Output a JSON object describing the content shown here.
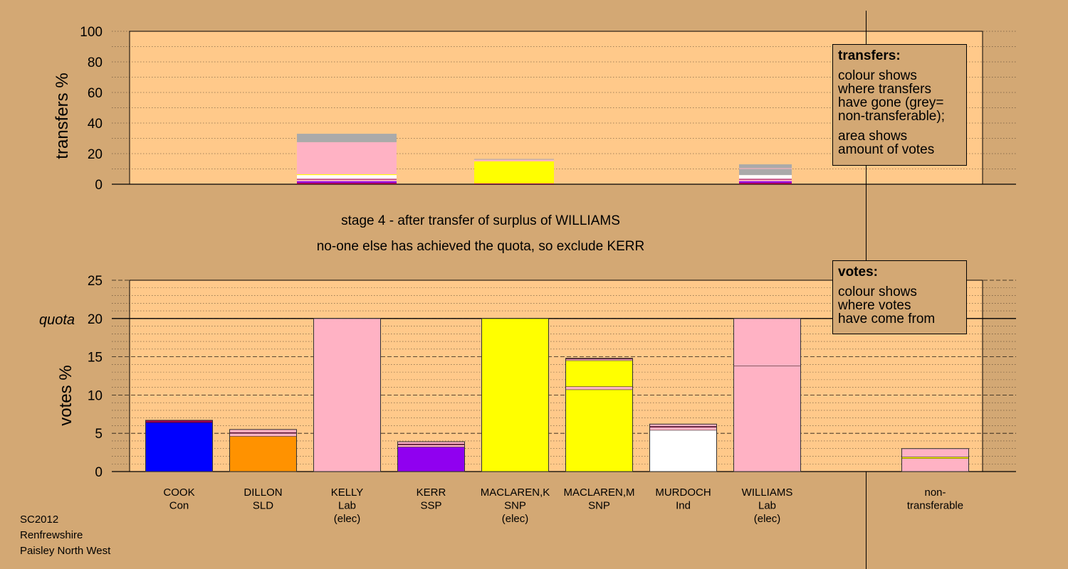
{
  "colors": {
    "background": "#d3a874",
    "plot_background": "#ffc98a",
    "Con": "#0000ff",
    "SLD": "#ff9200",
    "Lab": "#ffb2c4",
    "SSP": "#9000f0",
    "SNP": "#ffff00",
    "Ind": "#ffffff",
    "non_transferable": "#aaaaaa",
    "dark": "#a00050"
  },
  "captions": {
    "stage": "stage 4 - after transfer of surplus of WILLIAMS",
    "action": "no-one else has achieved the quota, so exclude KERR"
  },
  "legend_transfers": {
    "title": "transfers:",
    "lines1": [
      "colour shows",
      "where transfers",
      "have gone (grey=",
      "non-transferable);"
    ],
    "lines2": [
      "area shows",
      "amount of votes"
    ]
  },
  "legend_votes": {
    "title": "votes:",
    "lines": [
      "colour shows",
      "where votes",
      "have come from"
    ]
  },
  "footer": [
    "SC2012",
    "Renfrewshire",
    "Paisley North West"
  ],
  "chart_data": [
    {
      "type": "bar",
      "stacked": true,
      "ylabel": "transfers %",
      "ylim": [
        0,
        100
      ],
      "yticks": [
        0,
        20,
        40,
        60,
        80,
        100
      ],
      "grid": "dotted",
      "categories": [
        "COOK",
        "DILLON",
        "KELLY",
        "KERR",
        "MACLAREN,K",
        "MACLAREN,M",
        "MURDOCH",
        "WILLIAMS",
        "non-transferable"
      ],
      "bars": [
        {
          "category": "KELLY",
          "segments": [
            {
              "party": "dark",
              "value": 1
            },
            {
              "party": "SSP",
              "value": 1
            },
            {
              "party": "Lab",
              "value": 1
            },
            {
              "party": "dark",
              "value": 0.5
            },
            {
              "party": "Ind",
              "value": 2.5
            },
            {
              "party": "SNP",
              "value": 0.5
            },
            {
              "party": "Lab",
              "value": 21
            },
            {
              "party": "non_transferable",
              "value": 5.5
            }
          ]
        },
        {
          "category": "MACLAREN,K",
          "segments": [
            {
              "party": "dark",
              "value": 0.5
            },
            {
              "party": "SNP",
              "value": 14.5
            },
            {
              "party": "Lab",
              "value": 1
            },
            {
              "party": "non_transferable",
              "value": 0.5
            }
          ]
        },
        {
          "category": "WILLIAMS",
          "segments": [
            {
              "party": "dark",
              "value": 1
            },
            {
              "party": "SSP",
              "value": 1
            },
            {
              "party": "Lab",
              "value": 1
            },
            {
              "party": "dark",
              "value": 0.5
            },
            {
              "party": "Ind",
              "value": 2.5
            },
            {
              "party": "non_transferable",
              "value": 4
            },
            {
              "party": "Lab",
              "value": 0.5
            },
            {
              "party": "non_transferable",
              "value": 2.5
            }
          ]
        }
      ]
    },
    {
      "type": "bar",
      "stacked": true,
      "ylabel": "votes %",
      "quota_label": "quota",
      "quota": 20,
      "ylim": [
        0,
        25
      ],
      "yticks": [
        0,
        5,
        10,
        15,
        20,
        25
      ],
      "grid": "dashed",
      "categories": [
        {
          "name": "COOK",
          "party": "Con",
          "status": ""
        },
        {
          "name": "DILLON",
          "party": "SLD",
          "status": ""
        },
        {
          "name": "KELLY",
          "party": "Lab",
          "status": "(elec)"
        },
        {
          "name": "KERR",
          "party": "SSP",
          "status": ""
        },
        {
          "name": "MACLAREN,K",
          "party": "SNP",
          "status": "(elec)"
        },
        {
          "name": "MACLAREN,M",
          "party": "SNP",
          "status": ""
        },
        {
          "name": "MURDOCH",
          "party": "Ind",
          "status": ""
        },
        {
          "name": "WILLIAMS",
          "party": "Lab",
          "status": "(elec)"
        },
        {
          "name": "non-",
          "party": "transferable",
          "status": ""
        }
      ],
      "bars": [
        {
          "category": "COOK",
          "segments": [
            {
              "party": "Con",
              "value": 6.4
            },
            {
              "party": "dark",
              "value": 0.3
            }
          ]
        },
        {
          "category": "DILLON",
          "segments": [
            {
              "party": "SLD",
              "value": 4.6
            },
            {
              "party": "Lab",
              "value": 0.4
            },
            {
              "party": "dark",
              "value": 0.1
            },
            {
              "party": "Lab",
              "value": 0.4
            }
          ]
        },
        {
          "category": "KELLY",
          "segments": [
            {
              "party": "Lab",
              "value": 20
            }
          ]
        },
        {
          "category": "KERR",
          "segments": [
            {
              "party": "SSP",
              "value": 3.2
            },
            {
              "party": "Lab",
              "value": 0.3
            },
            {
              "party": "dark",
              "value": 0.1
            },
            {
              "party": "Lab",
              "value": 0.3
            }
          ]
        },
        {
          "category": "MACLAREN,K",
          "segments": [
            {
              "party": "SNP",
              "value": 20
            }
          ]
        },
        {
          "category": "MACLAREN,M",
          "segments": [
            {
              "party": "SNP",
              "value": 10.7
            },
            {
              "party": "Lab",
              "value": 0.4
            },
            {
              "party": "SNP",
              "value": 3.4
            },
            {
              "party": "Lab",
              "value": 0.2
            },
            {
              "party": "dark",
              "value": 0.1
            }
          ]
        },
        {
          "category": "MURDOCH",
          "segments": [
            {
              "party": "Ind",
              "value": 5.4
            },
            {
              "party": "Lab",
              "value": 0.4
            },
            {
              "party": "dark",
              "value": 0.1
            },
            {
              "party": "Lab",
              "value": 0.3
            }
          ]
        },
        {
          "category": "WILLIAMS",
          "segments": [
            {
              "party": "Lab",
              "value": 13.8
            },
            {
              "party": "Lab",
              "value": 6.2
            }
          ]
        },
        {
          "category": "non-transferable",
          "segments": [
            {
              "party": "Lab",
              "value": 1.7
            },
            {
              "party": "SNP",
              "value": 0.2
            },
            {
              "party": "Lab",
              "value": 1.1
            }
          ]
        }
      ]
    }
  ]
}
